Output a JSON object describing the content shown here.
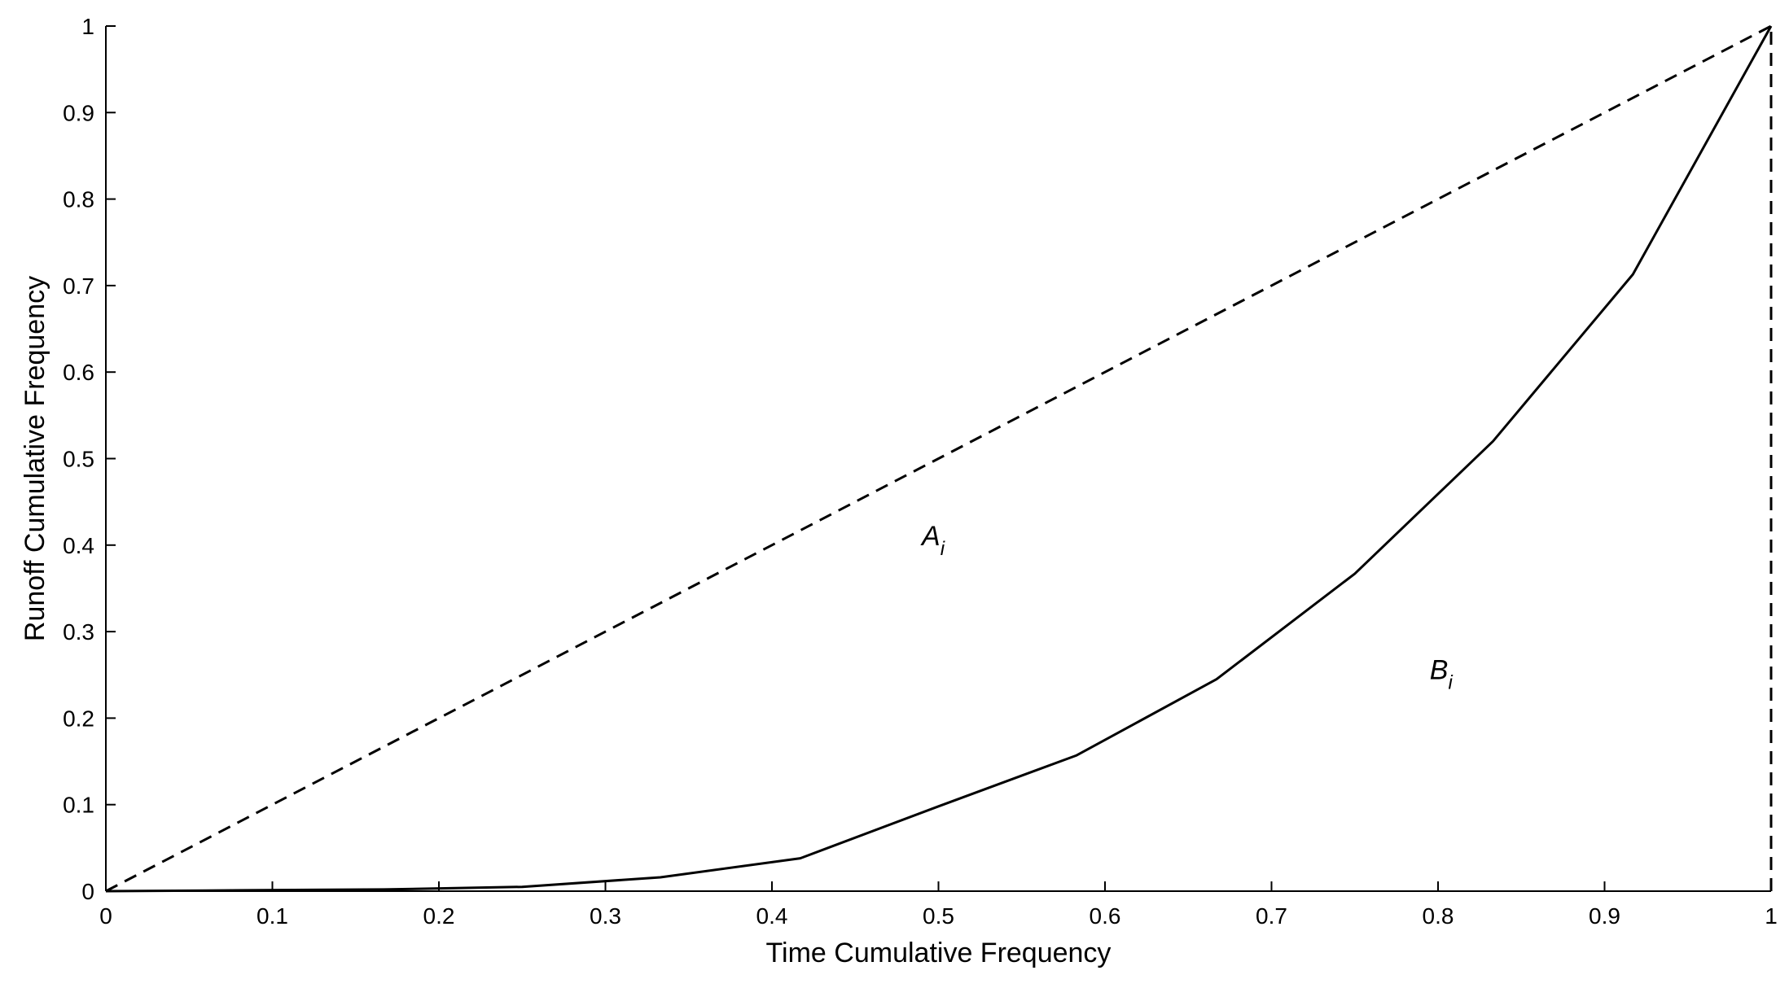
{
  "chart_data": {
    "type": "line",
    "title": "",
    "xlabel": "Time Cumulative Frequency",
    "ylabel": "Runoff Cumulative Frequency",
    "xlim": [
      0,
      1
    ],
    "ylim": [
      0,
      1
    ],
    "grid": false,
    "x_ticks": [
      "0",
      "0.1",
      "0.2",
      "0.3",
      "0.4",
      "0.5",
      "0.6",
      "0.7",
      "0.8",
      "0.9",
      "1"
    ],
    "y_ticks": [
      "0",
      "0.1",
      "0.2",
      "0.3",
      "0.4",
      "0.5",
      "0.6",
      "0.7",
      "0.8",
      "0.9",
      "1"
    ],
    "series": [
      {
        "style": "dashed",
        "x": [
          0,
          1
        ],
        "y": [
          0,
          1
        ]
      },
      {
        "style": "solid",
        "x": [
          0,
          0.083,
          0.167,
          0.25,
          0.333,
          0.417,
          0.5,
          0.583,
          0.667,
          0.75,
          0.833,
          0.917,
          1.0
        ],
        "y": [
          0,
          0.001,
          0.002,
          0.005,
          0.016,
          0.038,
          0.098,
          0.157,
          0.245,
          0.367,
          0.52,
          0.713,
          1.0
        ]
      },
      {
        "style": "dashed",
        "x": [
          1,
          1
        ],
        "y": [
          0,
          1
        ]
      }
    ],
    "annotations": [
      {
        "base": "A",
        "sub": "i",
        "x": 0.49,
        "y": 0.4
      },
      {
        "base": "B",
        "sub": "i",
        "x": 0.795,
        "y": 0.245
      }
    ]
  }
}
